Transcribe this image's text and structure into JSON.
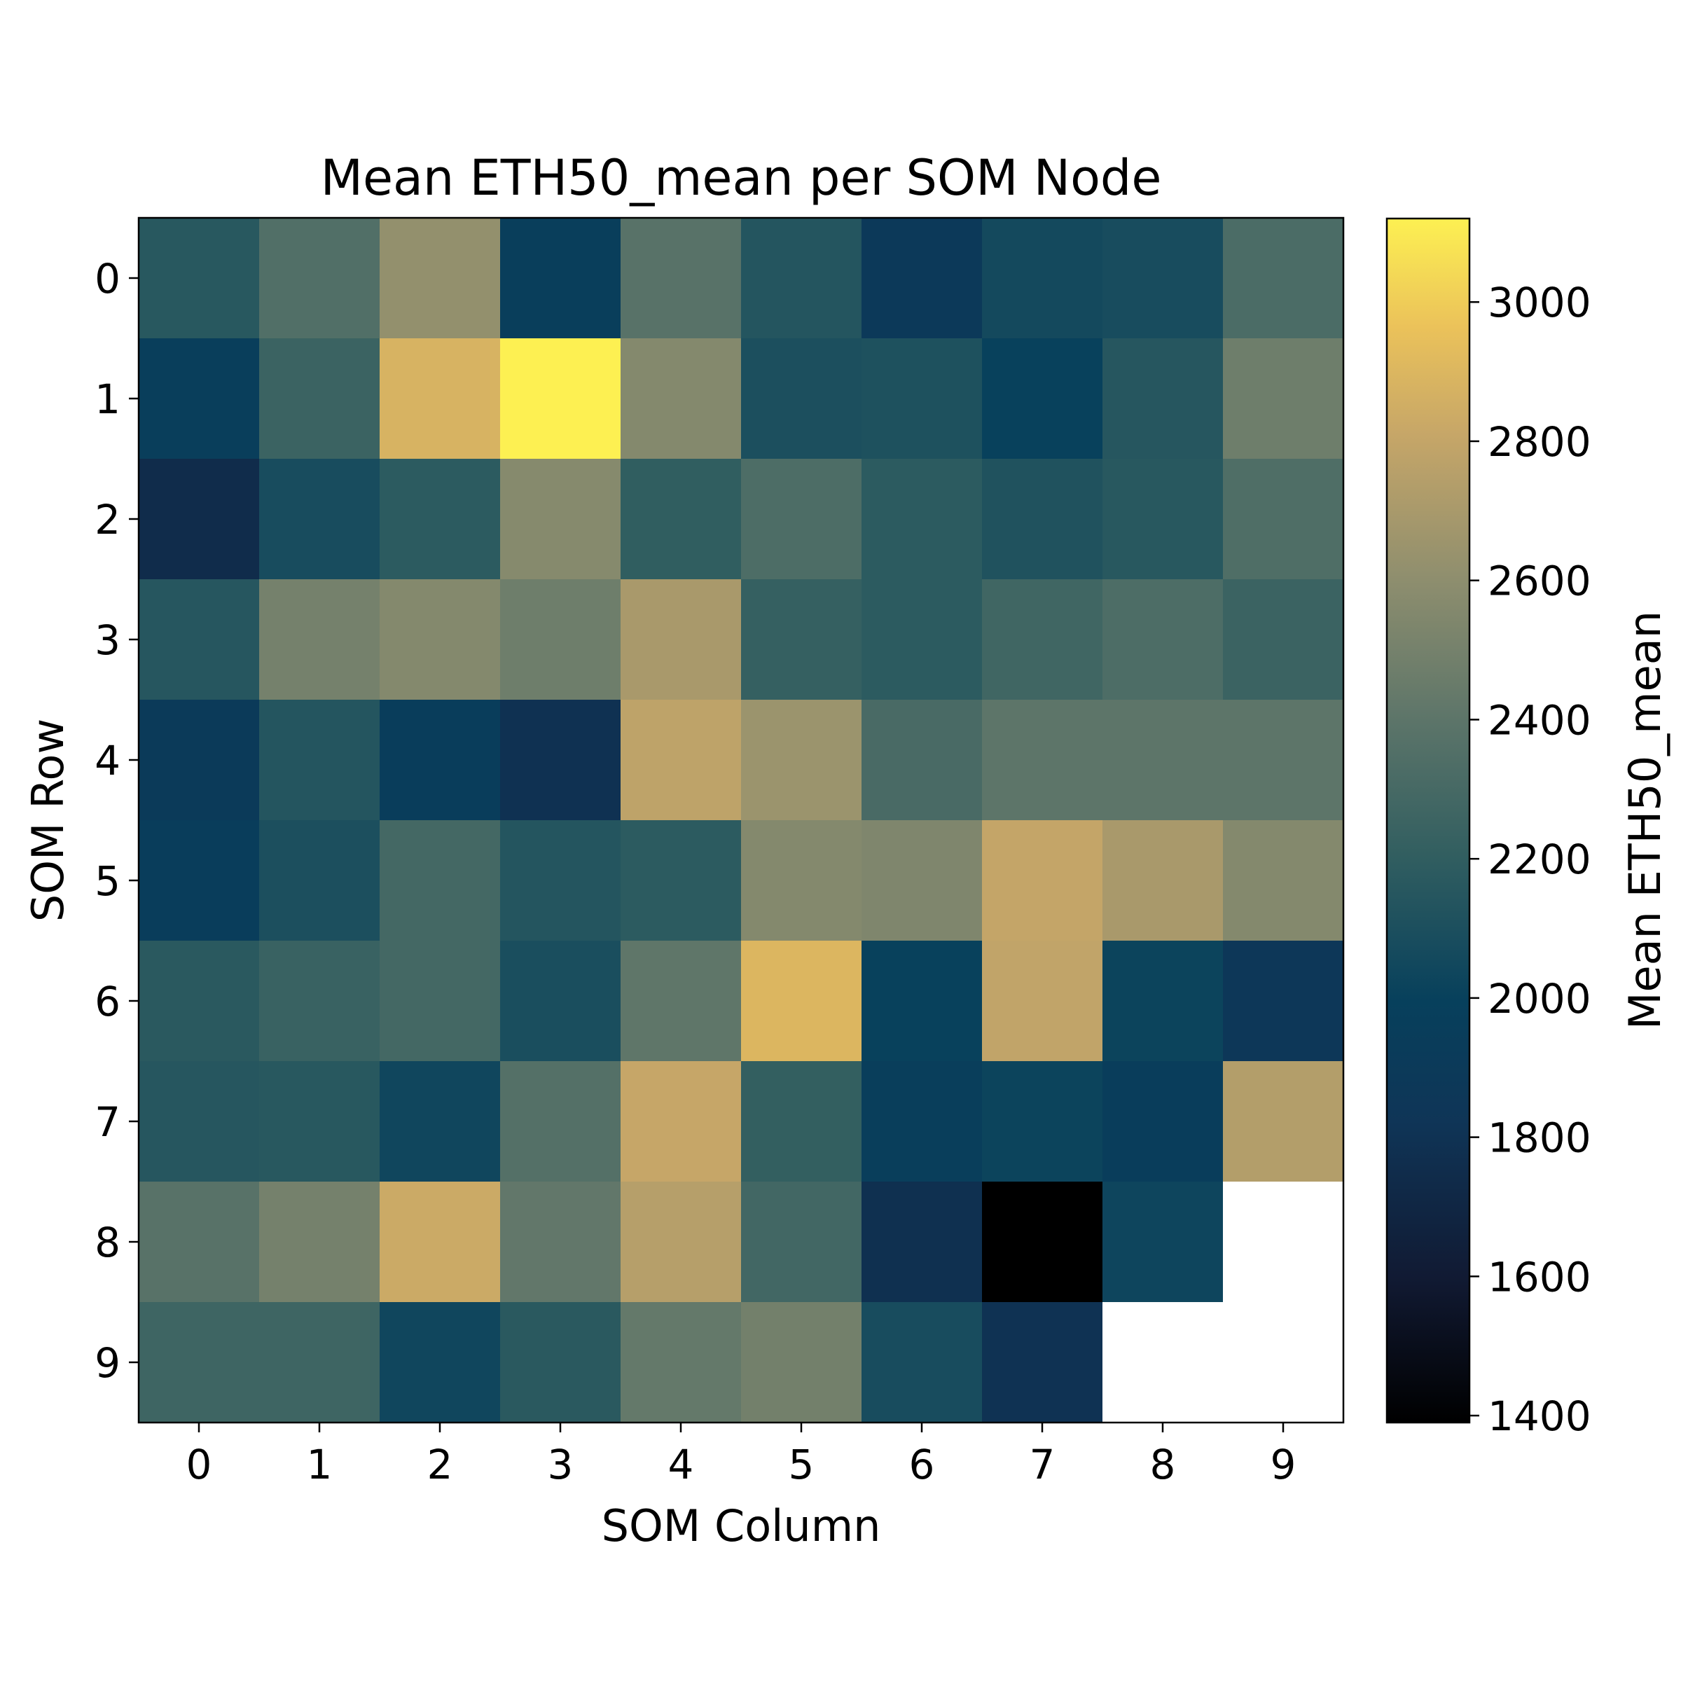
{
  "chart_data": {
    "type": "heatmap",
    "title": "Mean ETH50_mean per SOM Node",
    "xlabel": "SOM Column",
    "ylabel": "SOM Row",
    "x_ticks": [
      "0",
      "1",
      "2",
      "3",
      "4",
      "5",
      "6",
      "7",
      "8",
      "9"
    ],
    "y_ticks": [
      "0",
      "1",
      "2",
      "3",
      "4",
      "5",
      "6",
      "7",
      "8",
      "9"
    ],
    "colorbar": {
      "label": "Mean ETH50_mean",
      "range": [
        1390,
        3120
      ],
      "ticks": [
        1400,
        1600,
        1800,
        2000,
        2200,
        2400,
        2600,
        2800,
        3000
      ],
      "tick_labels": [
        "1400",
        "1600",
        "1800",
        "2000",
        "2200",
        "2400",
        "2600",
        "2800",
        "3000"
      ],
      "colormap": "cividis-like (black → dark blue → teal → tan → yellow)"
    },
    "empty_cell_color": "#ffffff",
    "values": [
      [
        2160,
        2350,
        2620,
        1960,
        2380,
        2140,
        1880,
        2060,
        2080,
        2320
      ],
      [
        1960,
        2250,
        2880,
        3120,
        2560,
        2100,
        2110,
        2000,
        2150,
        2470
      ],
      [
        1750,
        2080,
        2180,
        2570,
        2200,
        2330,
        2180,
        2120,
        2160,
        2340
      ],
      [
        2150,
        2500,
        2560,
        2470,
        2700,
        2220,
        2180,
        2270,
        2330,
        2250
      ],
      [
        1900,
        2140,
        1950,
        1790,
        2780,
        2650,
        2310,
        2400,
        2400,
        2400
      ],
      [
        1950,
        2100,
        2290,
        2140,
        2180,
        2560,
        2540,
        2800,
        2700,
        2560
      ],
      [
        2170,
        2240,
        2290,
        2090,
        2410,
        2900,
        2000,
        2790,
        2020,
        1860
      ],
      [
        2150,
        2160,
        2040,
        2360,
        2810,
        2210,
        1960,
        2020,
        1950,
        2740
      ],
      [
        2380,
        2500,
        2830,
        2420,
        2750,
        2280,
        1780,
        1390,
        2030,
        null
      ],
      [
        2260,
        2260,
        2040,
        2170,
        2430,
        2490,
        2080,
        1800,
        null,
        null
      ]
    ]
  }
}
